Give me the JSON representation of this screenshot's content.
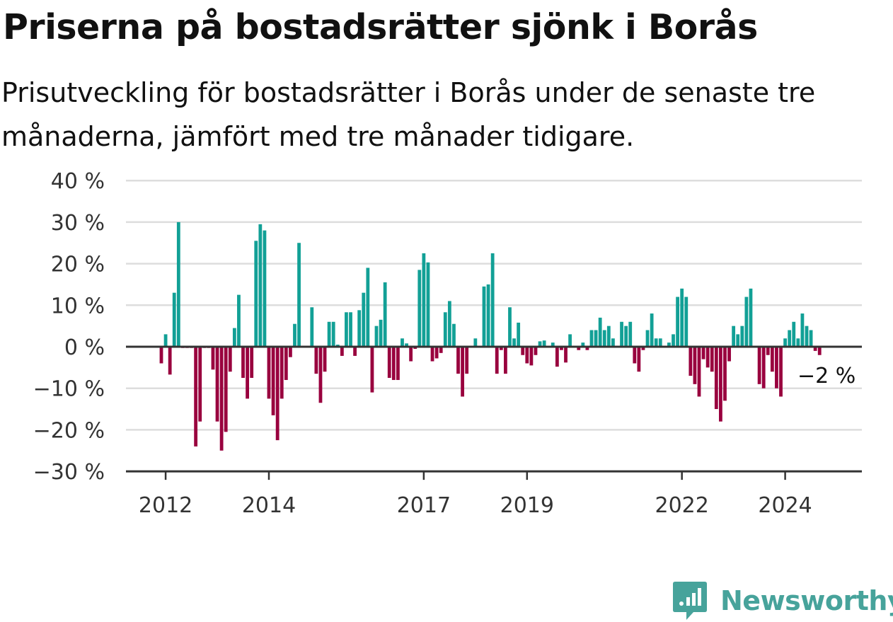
{
  "title": "Priserna på bostadsrätter sjönk i Borås",
  "subtitle": "Prisutveckling för bostadsrätter i Borås under de senaste tre månaderna, jämfört med tre månader tidigare.",
  "logo_text": "Newsworthy",
  "colors": {
    "positive": "#12a096",
    "negative": "#99003e",
    "grid": "#dddddd",
    "axis": "#333333"
  },
  "chart_data": {
    "type": "bar",
    "ylim": [
      -30,
      40
    ],
    "yticks": [
      40,
      30,
      20,
      10,
      0,
      -10,
      -20,
      -30
    ],
    "ytick_labels": [
      "40 %",
      "30 %",
      "20 %",
      "10 %",
      "0 %",
      "−10 %",
      "−20 %",
      "−30 %"
    ],
    "xticks": [
      "2012",
      "2014",
      "2017",
      "2019",
      "2022",
      "2024"
    ],
    "start": "2011-12",
    "annotation": "−2 %",
    "values": [
      -4,
      3,
      -6.7,
      13,
      30,
      -0.3,
      -0.3,
      -0.3,
      -24,
      -18,
      -0.3,
      -0.3,
      -5.5,
      -18,
      -25,
      -20.5,
      -6,
      4.5,
      12.5,
      -7.5,
      -12.5,
      -7.5,
      25.5,
      29.5,
      28,
      -12.5,
      -16.5,
      -22.5,
      -12.5,
      -8,
      -2.5,
      5.5,
      25,
      -0.2,
      -0.2,
      9.5,
      -6.5,
      -13.5,
      -6,
      6,
      6,
      0.5,
      -2.2,
      8.3,
      8.3,
      -2.2,
      8.8,
      13,
      19,
      -11,
      5,
      6.5,
      15.5,
      -7.5,
      -8,
      -8,
      2,
      0.8,
      -3.5,
      -0.5,
      18.5,
      22.5,
      20.3,
      -3.5,
      -2.8,
      -1.5,
      8.3,
      11,
      5.5,
      -6.5,
      -12,
      -6.5,
      -0.2,
      2,
      -0.2,
      14.5,
      15,
      22.5,
      -6.5,
      -0.8,
      -6.5,
      9.5,
      2,
      5.8,
      -2,
      -4,
      -4.5,
      -2,
      1.3,
      1.5,
      -0.2,
      1,
      -4.8,
      -0.8,
      -3.8,
      3,
      -0.2,
      -0.8,
      1,
      -0.8,
      4,
      4,
      7,
      4,
      5,
      2,
      -0.2,
      6,
      5,
      6,
      -4,
      -6,
      -0.8,
      4,
      8,
      2,
      2,
      -0.2,
      1,
      3,
      12,
      14,
      12,
      -7,
      -9,
      -12,
      -3,
      -5,
      -6,
      -15,
      -18,
      -13,
      -3.5,
      5,
      3,
      5,
      12,
      14,
      -0.2,
      -9,
      -10,
      -2,
      -6,
      -10,
      -12,
      2,
      4,
      6,
      2,
      8,
      5,
      4,
      -1,
      -2
    ]
  }
}
